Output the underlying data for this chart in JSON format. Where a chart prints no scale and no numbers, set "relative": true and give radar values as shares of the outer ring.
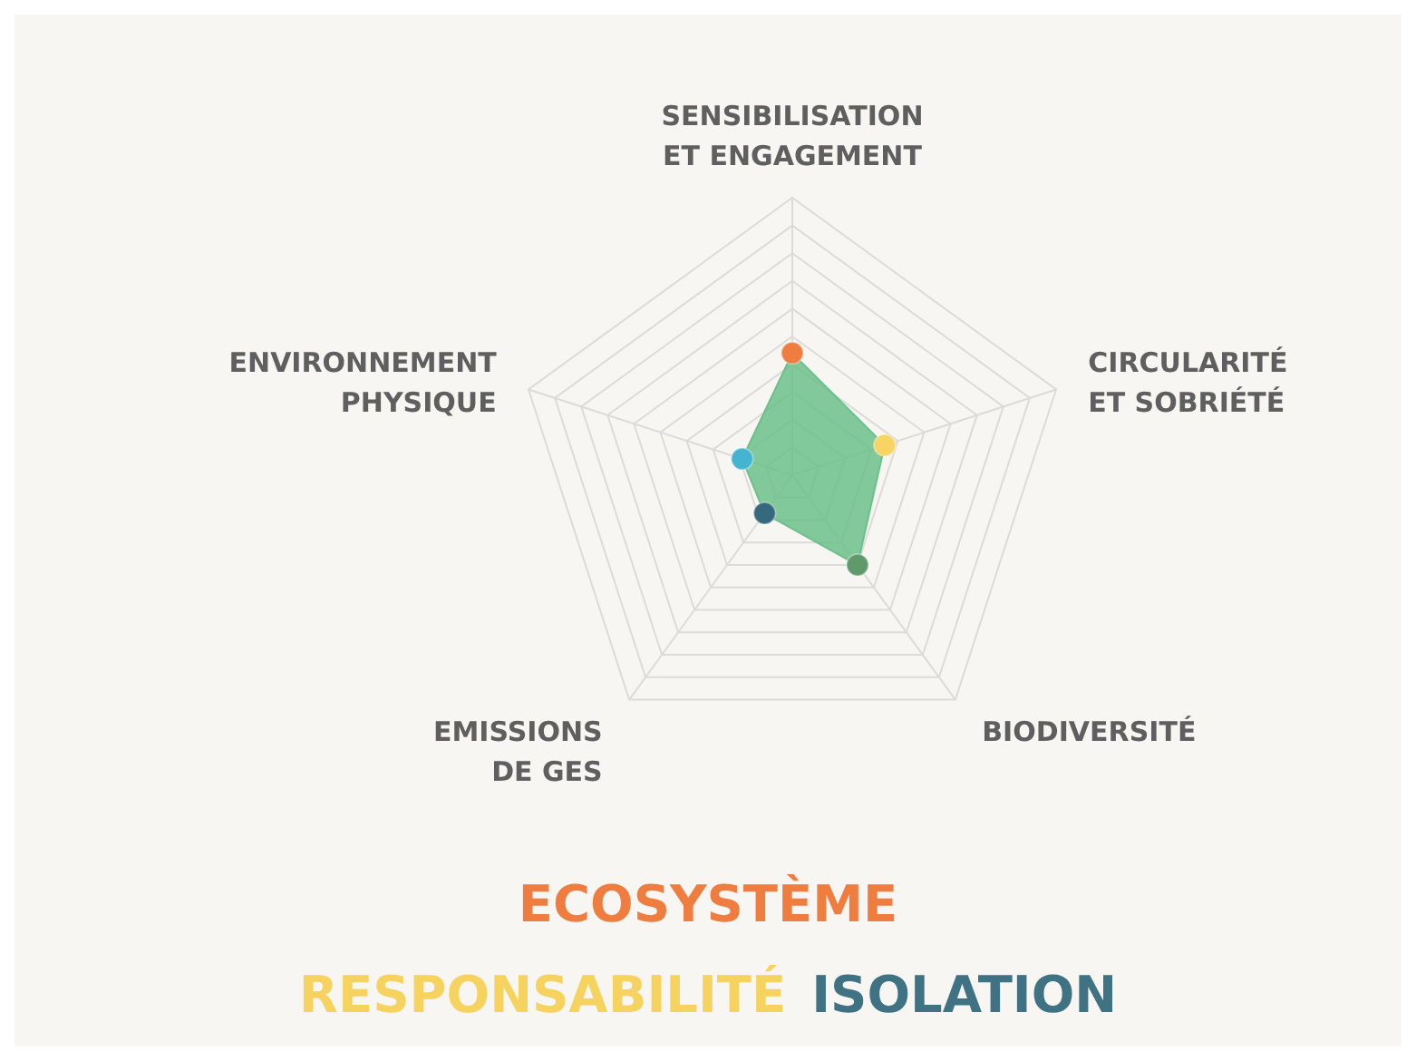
{
  "chart_data": {
    "type": "radar",
    "relative": true,
    "categories": [
      "SENSIBILISATION ET ENGAGEMENT",
      "CIRCULARITÉ ET SOBRIÉTÉ",
      "BIODIVERSITÉ",
      "EMISSIONS DE GES",
      "ENVIRONNEMENT PHYSIQUE"
    ],
    "series": [
      {
        "color": "#6cc08a",
        "colors": [
          "#ef7d3f",
          "#f6d562",
          "#5e9a6a",
          "#36687e",
          "#45b4d1"
        ],
        "values": [
          0.44,
          0.35,
          0.4,
          0.17,
          0.19
        ]
      }
    ],
    "marker": "circle",
    "grid": true,
    "legend": false,
    "annotations": [
      "ECOSYSTÈME",
      "RESPONSABILITÉ",
      "ISOLATION"
    ]
  }
}
